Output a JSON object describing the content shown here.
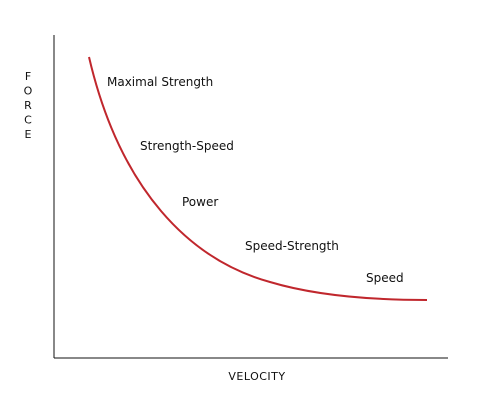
{
  "chart_data": {
    "type": "line",
    "xlabel": "VELOCITY",
    "ylabel": "FORCE",
    "curve_color": "#c0272d",
    "axis_color": "#111111",
    "zones": [
      {
        "label": "Maximal Strength"
      },
      {
        "label": "Strength-Speed"
      },
      {
        "label": "Power"
      },
      {
        "label": "Speed-Strength"
      },
      {
        "label": "Speed"
      }
    ]
  }
}
